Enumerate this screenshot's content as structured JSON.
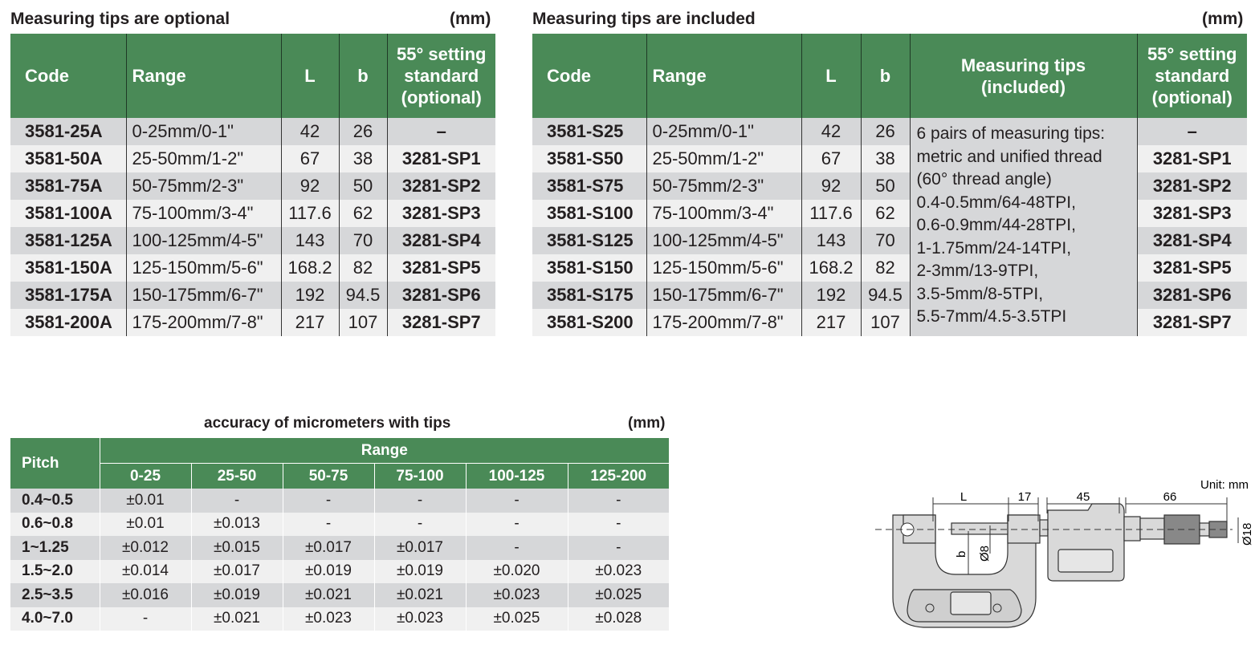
{
  "table1": {
    "title": "Measuring tips are optional",
    "unit": "(mm)",
    "headers": [
      "Code",
      "Range",
      "L",
      "b",
      "55° setting standard (optional)"
    ],
    "rows": [
      [
        "3581-25A",
        "0-25mm/0-1\"",
        "42",
        "26",
        "–"
      ],
      [
        "3581-50A",
        "25-50mm/1-2\"",
        "67",
        "38",
        "3281-SP1"
      ],
      [
        "3581-75A",
        "50-75mm/2-3\"",
        "92",
        "50",
        "3281-SP2"
      ],
      [
        "3581-100A",
        "75-100mm/3-4\"",
        "117.6",
        "62",
        "3281-SP3"
      ],
      [
        "3581-125A",
        "100-125mm/4-5\"",
        "143",
        "70",
        "3281-SP4"
      ],
      [
        "3581-150A",
        "125-150mm/5-6\"",
        "168.2",
        "82",
        "3281-SP5"
      ],
      [
        "3581-175A",
        "150-175mm/6-7\"",
        "192",
        "94.5",
        "3281-SP6"
      ],
      [
        "3581-200A",
        "175-200mm/7-8\"",
        "217",
        "107",
        "3281-SP7"
      ]
    ]
  },
  "table2": {
    "title": "Measuring tips are included",
    "unit": "(mm)",
    "headers": [
      "Code",
      "Range",
      "L",
      "b",
      "Measuring tips (included)",
      "55° setting standard (optional)"
    ],
    "rows": [
      [
        "3581-S25",
        "0-25mm/0-1\"",
        "42",
        "26",
        "–"
      ],
      [
        "3581-S50",
        "25-50mm/1-2\"",
        "67",
        "38",
        "3281-SP1"
      ],
      [
        "3581-S75",
        "50-75mm/2-3\"",
        "92",
        "50",
        "3281-SP2"
      ],
      [
        "3581-S100",
        "75-100mm/3-4\"",
        "117.6",
        "62",
        "3281-SP3"
      ],
      [
        "3581-S125",
        "100-125mm/4-5\"",
        "143",
        "70",
        "3281-SP4"
      ],
      [
        "3581-S150",
        "125-150mm/5-6\"",
        "168.2",
        "82",
        "3281-SP5"
      ],
      [
        "3581-S175",
        "150-175mm/6-7\"",
        "192",
        "94.5",
        "3281-SP6"
      ],
      [
        "3581-S200",
        "175-200mm/7-8\"",
        "217",
        "107",
        "3281-SP7"
      ]
    ],
    "tips_lines": [
      "6 pairs of measuring tips:",
      "metric and unified thread",
      "(60° thread angle)",
      "0.4-0.5mm/64-48TPI,",
      "0.6-0.9mm/44-28TPI,",
      "1-1.75mm/24-14TPI,",
      "2-3mm/13-9TPI,",
      "3.5-5mm/8-5TPI,",
      "5.5-7mm/4.5-3.5TPI"
    ]
  },
  "table3": {
    "title": "accuracy of micrometers with tips",
    "unit": "(mm)",
    "pitch_header": "Pitch",
    "range_header": "Range",
    "ranges": [
      "0-25",
      "25-50",
      "50-75",
      "75-100",
      "100-125",
      "125-200"
    ],
    "rows": [
      [
        "0.4~0.5",
        "±0.01",
        "-",
        "-",
        "-",
        "-",
        "-"
      ],
      [
        "0.6~0.8",
        "±0.01",
        "±0.013",
        "-",
        "-",
        "-",
        "-"
      ],
      [
        "1~1.25",
        "±0.012",
        "±0.015",
        "±0.017",
        "±0.017",
        "-",
        "-"
      ],
      [
        "1.5~2.0",
        "±0.014",
        "±0.017",
        "±0.019",
        "±0.019",
        "±0.020",
        "±0.023"
      ],
      [
        "2.5~3.5",
        "±0.016",
        "±0.019",
        "±0.021",
        "±0.021",
        "±0.023",
        "±0.025"
      ],
      [
        "4.0~7.0",
        "-",
        "±0.021",
        "±0.023",
        "±0.023",
        "±0.025",
        "±0.028"
      ]
    ]
  },
  "diagram": {
    "unit_label": "Unit: mm",
    "dims": {
      "L": "L",
      "d17": "17",
      "d45": "45",
      "d66": "66",
      "b": "b",
      "d8": "Ø8",
      "d18": "Ø18"
    }
  }
}
